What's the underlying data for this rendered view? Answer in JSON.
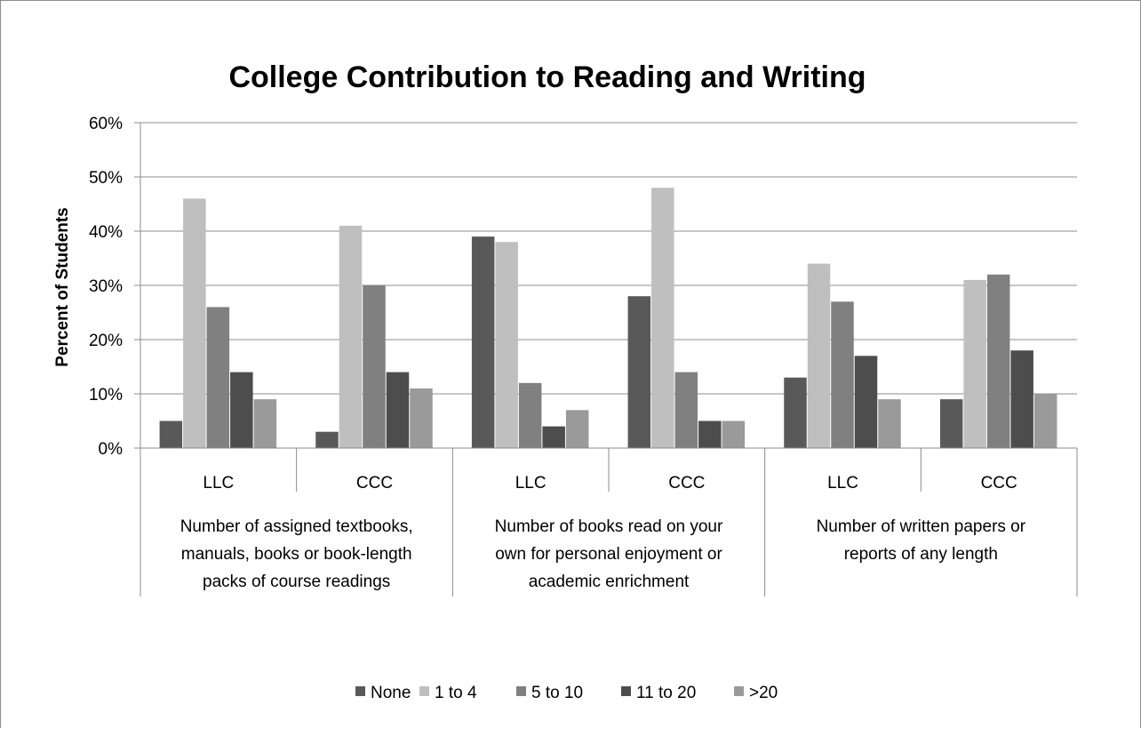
{
  "chart_data": {
    "type": "bar",
    "title": "College Contribution to Reading and Writing",
    "ylabel": "Percent of Students",
    "xlabel": "",
    "ylim": [
      0,
      60
    ],
    "yticks": [
      0,
      10,
      20,
      30,
      40,
      50,
      60
    ],
    "ytick_labels": [
      "0%",
      "10%",
      "20%",
      "30%",
      "40%",
      "50%",
      "60%"
    ],
    "groups": [
      {
        "label_lines": [
          "Number of assigned textbooks,",
          "manuals, books or book-length",
          "packs of course readings"
        ],
        "subcategories": [
          "LLC",
          "CCC"
        ]
      },
      {
        "label_lines": [
          "Number of books read on your",
          "own for personal enjoyment or",
          "academic enrichment"
        ],
        "subcategories": [
          "LLC",
          "CCC"
        ]
      },
      {
        "label_lines": [
          "Number of written papers or",
          "reports of any length"
        ],
        "subcategories": [
          "LLC",
          "CCC"
        ]
      }
    ],
    "categories": [
      "LLC",
      "CCC",
      "LLC",
      "CCC",
      "LLC",
      "CCC"
    ],
    "series": [
      {
        "name": "None",
        "color": "#595959",
        "values": [
          5,
          3,
          39,
          28,
          13,
          9
        ]
      },
      {
        "name": "1 to 4",
        "color": "#bfbfbf",
        "values": [
          46,
          41,
          38,
          48,
          34,
          31
        ]
      },
      {
        "name": "5 to 10",
        "color": "#808080",
        "values": [
          26,
          30,
          12,
          14,
          27,
          32
        ]
      },
      {
        "name": "11 to 20",
        "color": "#4d4d4d",
        "values": [
          14,
          14,
          4,
          5,
          17,
          18
        ]
      },
      {
        "name": ">20",
        "color": "#9a9a9a",
        "values": [
          9,
          11,
          7,
          5,
          9,
          10
        ]
      }
    ],
    "grid": true,
    "legend_position": "bottom"
  }
}
